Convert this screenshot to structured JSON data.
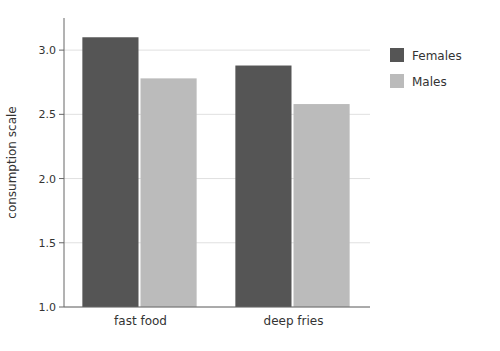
{
  "chart_data": {
    "type": "bar",
    "categories": [
      "fast food",
      "deep fries"
    ],
    "series": [
      {
        "name": "Females",
        "color": "#555555",
        "values": [
          3.1,
          2.88
        ]
      },
      {
        "name": "Males",
        "color": "#bbbbbb",
        "values": [
          2.78,
          2.58
        ]
      }
    ],
    "ylabel": "consumption scale",
    "ylim": [
      1,
      3.25
    ],
    "yticks": [
      {
        "value": 1,
        "label": "1.0"
      },
      1.5,
      {
        "value": 2,
        "label": "2.0"
      },
      2.5,
      {
        "value": 3,
        "label": "3.0"
      }
    ],
    "grid": true,
    "legend": "right"
  }
}
